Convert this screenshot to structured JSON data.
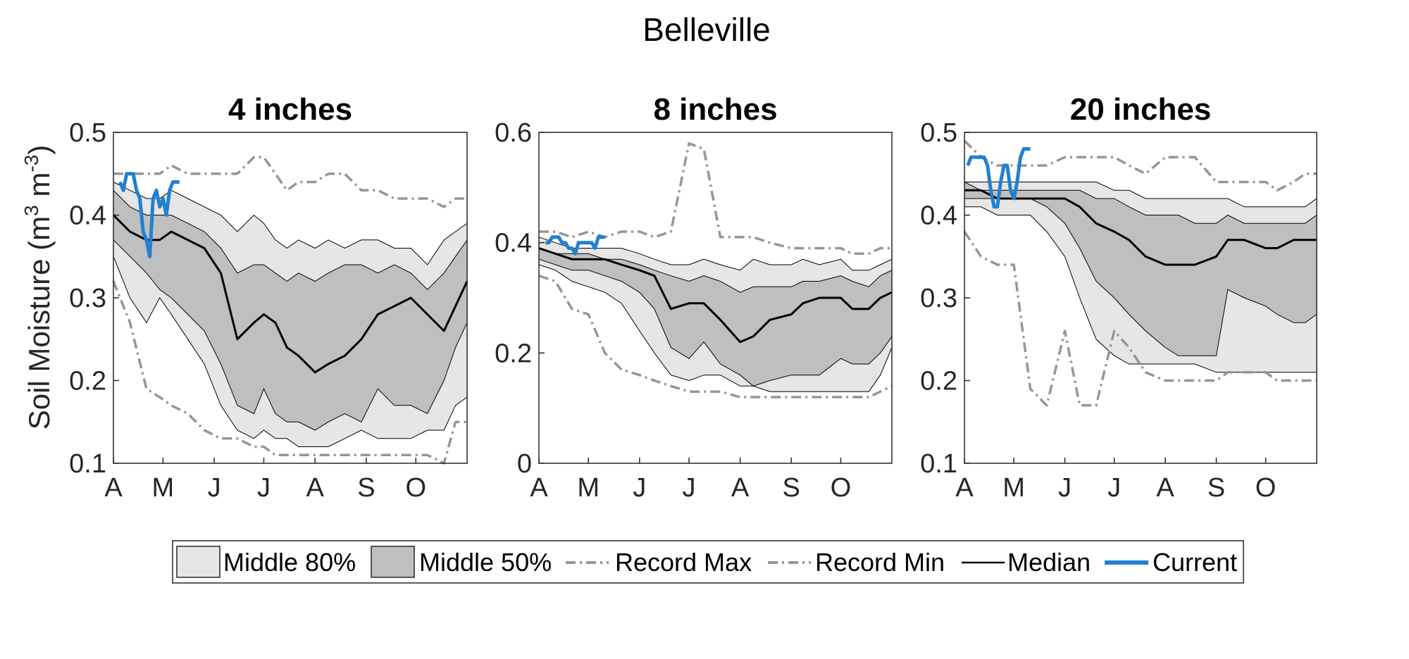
{
  "chart_data": {
    "title": "Belleville",
    "ylabel": "Soil Moisture",
    "ylabel_unit_base": "m",
    "ylabel_unit_exp1": "3",
    "ylabel_unit_exp2": "-3",
    "x_ticks": [
      "A",
      "M",
      "J",
      "J",
      "A",
      "S",
      "O"
    ],
    "x_tick_days": [
      0,
      30,
      61,
      91,
      122,
      153,
      183
    ],
    "x_range": [
      0,
      214
    ],
    "legend": {
      "middle80": "Middle 80%",
      "middle50": "Middle 50%",
      "record_max": "Record Max",
      "record_min": "Record Min",
      "median": "Median",
      "current": "Current"
    },
    "colors": {
      "middle80": "#e6e6e6",
      "middle50": "#bfbfbf",
      "record": "#969696",
      "median": "#000000",
      "current": "#2280d0"
    },
    "panels": [
      {
        "title": "4 inches",
        "type": "area",
        "ylim": [
          0.1,
          0.5
        ],
        "yticks": [
          0.1,
          0.2,
          0.3,
          0.4,
          0.5
        ],
        "ytick_labels": [
          "0.1",
          "0.2",
          "0.3",
          "0.4",
          "0.5"
        ],
        "day": [
          0,
          10,
          20,
          28,
          35,
          45,
          55,
          65,
          75,
          85,
          91,
          98,
          105,
          112,
          122,
          130,
          140,
          150,
          160,
          170,
          180,
          190,
          200,
          207,
          214
        ],
        "p90": [
          0.44,
          0.43,
          0.42,
          0.42,
          0.43,
          0.42,
          0.41,
          0.4,
          0.38,
          0.4,
          0.39,
          0.37,
          0.36,
          0.37,
          0.36,
          0.37,
          0.36,
          0.37,
          0.37,
          0.36,
          0.36,
          0.34,
          0.37,
          0.38,
          0.39
        ],
        "p75": [
          0.43,
          0.41,
          0.4,
          0.4,
          0.4,
          0.39,
          0.38,
          0.36,
          0.33,
          0.34,
          0.34,
          0.33,
          0.32,
          0.33,
          0.32,
          0.33,
          0.34,
          0.34,
          0.33,
          0.34,
          0.33,
          0.31,
          0.33,
          0.35,
          0.37
        ],
        "p25": [
          0.37,
          0.35,
          0.33,
          0.31,
          0.3,
          0.28,
          0.26,
          0.22,
          0.17,
          0.16,
          0.19,
          0.16,
          0.15,
          0.15,
          0.14,
          0.15,
          0.16,
          0.15,
          0.19,
          0.17,
          0.17,
          0.16,
          0.2,
          0.24,
          0.27
        ],
        "p10": [
          0.35,
          0.3,
          0.27,
          0.3,
          0.28,
          0.25,
          0.22,
          0.17,
          0.14,
          0.13,
          0.14,
          0.13,
          0.13,
          0.12,
          0.12,
          0.12,
          0.13,
          0.14,
          0.13,
          0.13,
          0.13,
          0.14,
          0.14,
          0.17,
          0.18
        ],
        "median": [
          0.4,
          0.38,
          0.37,
          0.37,
          0.38,
          0.37,
          0.36,
          0.33,
          0.25,
          0.27,
          0.28,
          0.27,
          0.24,
          0.23,
          0.21,
          0.22,
          0.23,
          0.25,
          0.28,
          0.29,
          0.3,
          0.28,
          0.26,
          0.29,
          0.32
        ],
        "record_max": [
          0.45,
          0.45,
          0.45,
          0.45,
          0.46,
          0.45,
          0.45,
          0.45,
          0.45,
          0.47,
          0.47,
          0.45,
          0.43,
          0.44,
          0.44,
          0.45,
          0.45,
          0.43,
          0.43,
          0.42,
          0.42,
          0.42,
          0.41,
          0.42,
          0.42
        ],
        "record_min": [
          0.32,
          0.27,
          0.19,
          0.18,
          0.17,
          0.16,
          0.14,
          0.13,
          0.13,
          0.12,
          0.12,
          0.11,
          0.11,
          0.11,
          0.11,
          0.11,
          0.11,
          0.11,
          0.11,
          0.11,
          0.11,
          0.11,
          0.1,
          0.15,
          0.15
        ],
        "current_day": [
          4,
          6,
          8,
          12,
          14,
          16,
          18,
          20,
          22,
          24,
          26,
          28,
          30,
          32,
          34,
          36,
          38,
          40
        ],
        "current": [
          0.44,
          0.43,
          0.45,
          0.45,
          0.43,
          0.42,
          0.38,
          0.37,
          0.35,
          0.42,
          0.43,
          0.41,
          0.42,
          0.4,
          0.43,
          0.44,
          0.44,
          0.44
        ]
      },
      {
        "title": "8 inches",
        "type": "area",
        "ylim": [
          0,
          0.6
        ],
        "yticks": [
          0,
          0.2,
          0.4,
          0.6
        ],
        "ytick_labels": [
          "0",
          "0.2",
          "0.4",
          "0.6"
        ],
        "day": [
          0,
          10,
          20,
          30,
          40,
          50,
          61,
          70,
          80,
          91,
          100,
          110,
          122,
          130,
          140,
          153,
          160,
          170,
          183,
          190,
          200,
          207,
          214
        ],
        "p90": [
          0.41,
          0.4,
          0.39,
          0.39,
          0.39,
          0.39,
          0.38,
          0.37,
          0.36,
          0.36,
          0.37,
          0.36,
          0.35,
          0.37,
          0.36,
          0.36,
          0.37,
          0.36,
          0.37,
          0.35,
          0.35,
          0.36,
          0.37
        ],
        "p75": [
          0.39,
          0.38,
          0.38,
          0.38,
          0.37,
          0.37,
          0.36,
          0.35,
          0.34,
          0.33,
          0.34,
          0.33,
          0.31,
          0.32,
          0.32,
          0.32,
          0.33,
          0.33,
          0.34,
          0.33,
          0.32,
          0.34,
          0.35
        ],
        "p25": [
          0.37,
          0.36,
          0.35,
          0.35,
          0.34,
          0.33,
          0.31,
          0.28,
          0.21,
          0.19,
          0.22,
          0.18,
          0.16,
          0.14,
          0.15,
          0.16,
          0.16,
          0.16,
          0.19,
          0.18,
          0.18,
          0.2,
          0.23
        ],
        "p10": [
          0.36,
          0.35,
          0.33,
          0.32,
          0.31,
          0.29,
          0.24,
          0.2,
          0.16,
          0.15,
          0.16,
          0.16,
          0.14,
          0.14,
          0.13,
          0.13,
          0.13,
          0.13,
          0.13,
          0.13,
          0.13,
          0.16,
          0.21
        ],
        "median": [
          0.39,
          0.38,
          0.37,
          0.37,
          0.37,
          0.36,
          0.35,
          0.34,
          0.28,
          0.29,
          0.29,
          0.26,
          0.22,
          0.23,
          0.26,
          0.27,
          0.29,
          0.3,
          0.3,
          0.28,
          0.28,
          0.3,
          0.31
        ],
        "record_max": [
          0.42,
          0.42,
          0.41,
          0.42,
          0.41,
          0.42,
          0.42,
          0.41,
          0.42,
          0.58,
          0.57,
          0.41,
          0.41,
          0.41,
          0.4,
          0.39,
          0.39,
          0.39,
          0.39,
          0.38,
          0.38,
          0.39,
          0.39
        ],
        "record_min": [
          0.34,
          0.33,
          0.28,
          0.27,
          0.2,
          0.17,
          0.16,
          0.15,
          0.14,
          0.13,
          0.13,
          0.13,
          0.12,
          0.12,
          0.12,
          0.12,
          0.12,
          0.12,
          0.12,
          0.12,
          0.12,
          0.13,
          0.14
        ],
        "current_day": [
          4,
          6,
          8,
          10,
          12,
          14,
          16,
          18,
          20,
          22,
          24,
          26,
          28,
          30,
          32,
          34,
          36,
          38,
          40
        ],
        "current": [
          0.4,
          0.4,
          0.41,
          0.41,
          0.41,
          0.4,
          0.4,
          0.39,
          0.39,
          0.38,
          0.4,
          0.4,
          0.4,
          0.4,
          0.4,
          0.39,
          0.41,
          0.41,
          0.41
        ]
      },
      {
        "title": "20 inches",
        "type": "area",
        "ylim": [
          0.1,
          0.5
        ],
        "yticks": [
          0.1,
          0.2,
          0.3,
          0.4,
          0.5
        ],
        "ytick_labels": [
          "0.1",
          "0.2",
          "0.3",
          "0.4",
          "0.5"
        ],
        "day": [
          0,
          10,
          20,
          30,
          40,
          50,
          61,
          70,
          80,
          91,
          100,
          110,
          122,
          130,
          140,
          153,
          160,
          170,
          183,
          190,
          200,
          207,
          214
        ],
        "p90": [
          0.44,
          0.44,
          0.44,
          0.44,
          0.44,
          0.44,
          0.44,
          0.44,
          0.44,
          0.43,
          0.43,
          0.42,
          0.42,
          0.42,
          0.42,
          0.42,
          0.42,
          0.41,
          0.41,
          0.41,
          0.41,
          0.41,
          0.42
        ],
        "p75": [
          0.44,
          0.43,
          0.43,
          0.43,
          0.43,
          0.43,
          0.43,
          0.43,
          0.42,
          0.42,
          0.41,
          0.4,
          0.4,
          0.4,
          0.39,
          0.39,
          0.4,
          0.39,
          0.39,
          0.39,
          0.39,
          0.39,
          0.4
        ],
        "p25": [
          0.42,
          0.42,
          0.42,
          0.42,
          0.42,
          0.41,
          0.39,
          0.36,
          0.32,
          0.3,
          0.28,
          0.26,
          0.24,
          0.23,
          0.23,
          0.23,
          0.31,
          0.3,
          0.29,
          0.28,
          0.27,
          0.27,
          0.28
        ],
        "p10": [
          0.41,
          0.41,
          0.4,
          0.4,
          0.4,
          0.38,
          0.35,
          0.3,
          0.25,
          0.23,
          0.22,
          0.22,
          0.22,
          0.22,
          0.22,
          0.21,
          0.21,
          0.21,
          0.21,
          0.21,
          0.21,
          0.21,
          0.21
        ],
        "median": [
          0.43,
          0.43,
          0.42,
          0.42,
          0.42,
          0.42,
          0.42,
          0.41,
          0.39,
          0.38,
          0.37,
          0.35,
          0.34,
          0.34,
          0.34,
          0.35,
          0.37,
          0.37,
          0.36,
          0.36,
          0.37,
          0.37,
          0.37
        ],
        "record_max": [
          0.49,
          0.47,
          0.46,
          0.46,
          0.46,
          0.46,
          0.47,
          0.47,
          0.47,
          0.47,
          0.46,
          0.45,
          0.47,
          0.47,
          0.47,
          0.44,
          0.44,
          0.44,
          0.44,
          0.43,
          0.44,
          0.45,
          0.45
        ],
        "record_min": [
          0.38,
          0.35,
          0.34,
          0.34,
          0.19,
          0.17,
          0.26,
          0.17,
          0.17,
          0.26,
          0.24,
          0.21,
          0.2,
          0.2,
          0.2,
          0.2,
          0.21,
          0.21,
          0.21,
          0.2,
          0.2,
          0.2,
          0.2
        ],
        "current_day": [
          2,
          4,
          6,
          8,
          10,
          12,
          14,
          16,
          18,
          20,
          22,
          24,
          26,
          28,
          30,
          32,
          34,
          36,
          38,
          40
        ],
        "current": [
          0.46,
          0.47,
          0.47,
          0.47,
          0.47,
          0.47,
          0.46,
          0.43,
          0.41,
          0.41,
          0.44,
          0.46,
          0.46,
          0.43,
          0.42,
          0.44,
          0.47,
          0.48,
          0.48,
          0.48
        ]
      }
    ]
  }
}
